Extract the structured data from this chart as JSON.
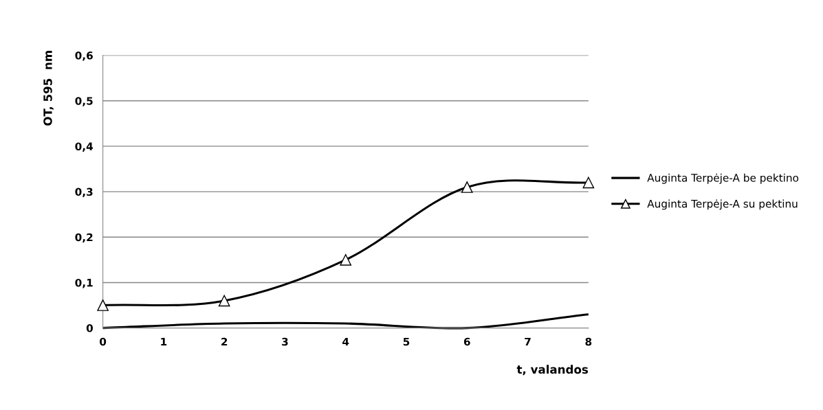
{
  "chart_data": {
    "type": "line",
    "xlabel": "t, valandos",
    "ylabel": "OT, 595  nm",
    "x": [
      0,
      2,
      4,
      6,
      8
    ],
    "series": [
      {
        "name": "Auginta Terpėje-A be pektino",
        "color": "#000000",
        "marker": "none",
        "values": [
          0,
          0.01,
          0.01,
          0,
          0.03
        ]
      },
      {
        "name": "Auginta Terpėje-A su pektinu",
        "color": "#000000",
        "marker": "triangle",
        "values": [
          0.05,
          0.06,
          0.15,
          0.31,
          0.32
        ]
      }
    ],
    "xlim": [
      0,
      8
    ],
    "xticks": [
      0,
      1,
      2,
      3,
      4,
      5,
      6,
      7,
      8
    ],
    "ylim": [
      0,
      0.6
    ],
    "yticks": [
      {
        "value": 0,
        "label": "0"
      },
      {
        "value": 0.1,
        "label": "0,1"
      },
      {
        "value": 0.2,
        "label": "0,2"
      },
      {
        "value": 0.3,
        "label": "0,3"
      },
      {
        "value": 0.4,
        "label": "0,4"
      },
      {
        "value": 0.5,
        "label": "0,5"
      },
      {
        "value": 0.6,
        "label": "0,6"
      }
    ],
    "grid": "y",
    "legend": "right",
    "line_style": "solid"
  }
}
